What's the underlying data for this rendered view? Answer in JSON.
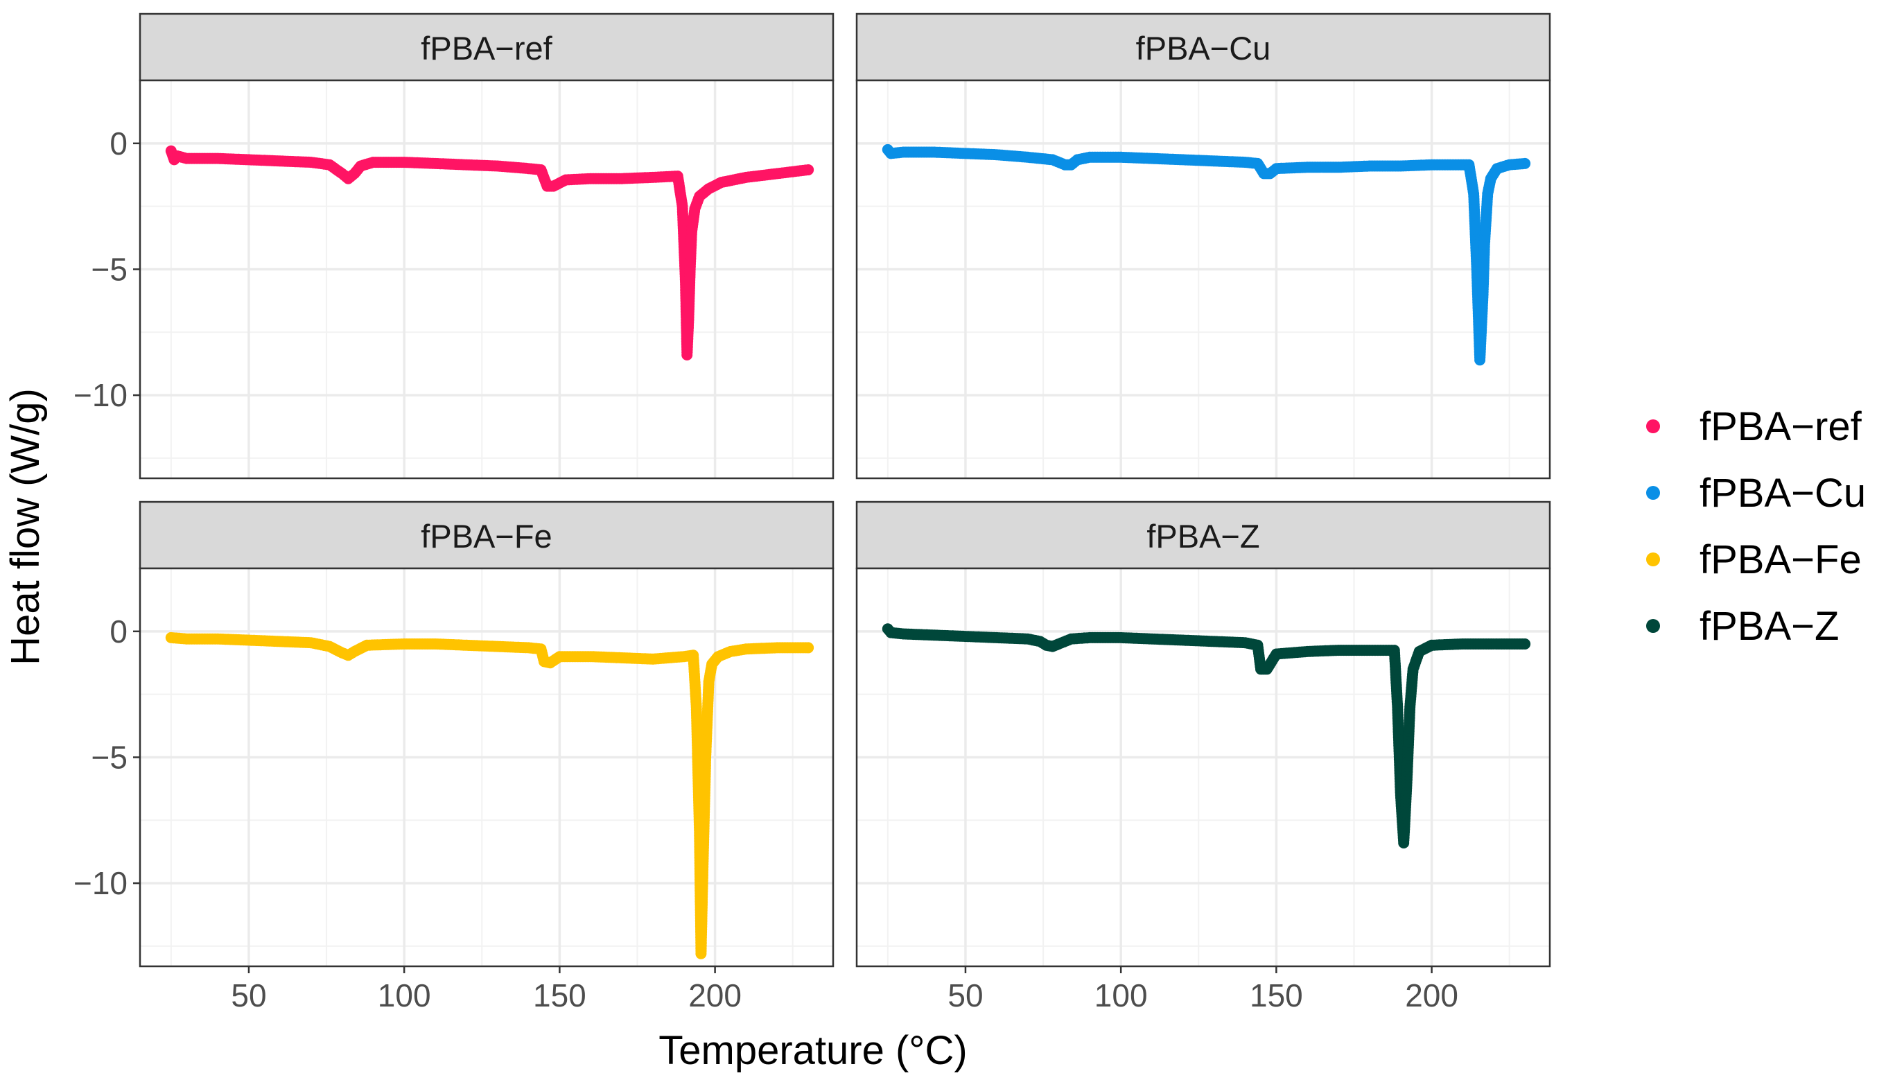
{
  "chart_data": {
    "type": "scatter",
    "layout": "facet-grid-2x2",
    "xlabel": "Temperature (°C)",
    "ylabel": "Heat flow (W/g)",
    "xlim": [
      15,
      238
    ],
    "ylim": [
      -13.3,
      2.5
    ],
    "xticks": [
      50,
      100,
      150,
      200
    ],
    "yticks": [
      0,
      -5,
      -10
    ],
    "xtick_labels": [
      "50",
      "100",
      "150",
      "200"
    ],
    "ytick_labels": [
      "0",
      "−5",
      "−10"
    ],
    "grid": true,
    "legend_position": "right",
    "series": [
      {
        "name": "fPBA−ref",
        "color": "#FF1464",
        "points": [
          [
            25,
            -0.3
          ],
          [
            26,
            -0.65
          ],
          [
            27,
            -0.5
          ],
          [
            30,
            -0.6
          ],
          [
            40,
            -0.6
          ],
          [
            50,
            -0.65
          ],
          [
            60,
            -0.7
          ],
          [
            70,
            -0.75
          ],
          [
            76,
            -0.85
          ],
          [
            80,
            -1.2
          ],
          [
            82,
            -1.4
          ],
          [
            84,
            -1.2
          ],
          [
            86,
            -0.9
          ],
          [
            90,
            -0.75
          ],
          [
            100,
            -0.75
          ],
          [
            110,
            -0.8
          ],
          [
            120,
            -0.85
          ],
          [
            130,
            -0.9
          ],
          [
            140,
            -1.0
          ],
          [
            144,
            -1.05
          ],
          [
            146,
            -1.7
          ],
          [
            148,
            -1.7
          ],
          [
            152,
            -1.45
          ],
          [
            160,
            -1.4
          ],
          [
            170,
            -1.4
          ],
          [
            180,
            -1.35
          ],
          [
            188,
            -1.3
          ],
          [
            189.5,
            -2.5
          ],
          [
            190.5,
            -5.5
          ],
          [
            191,
            -8.4
          ],
          [
            191.5,
            -7.0
          ],
          [
            192,
            -5.0
          ],
          [
            192.5,
            -3.5
          ],
          [
            193.5,
            -2.6
          ],
          [
            195,
            -2.1
          ],
          [
            198,
            -1.8
          ],
          [
            202,
            -1.55
          ],
          [
            210,
            -1.35
          ],
          [
            220,
            -1.2
          ],
          [
            230,
            -1.05
          ]
        ]
      },
      {
        "name": "fPBA−Cu",
        "color": "#0A8FE6",
        "points": [
          [
            25,
            -0.25
          ],
          [
            26,
            -0.4
          ],
          [
            30,
            -0.35
          ],
          [
            40,
            -0.35
          ],
          [
            50,
            -0.4
          ],
          [
            60,
            -0.45
          ],
          [
            70,
            -0.55
          ],
          [
            78,
            -0.65
          ],
          [
            82,
            -0.85
          ],
          [
            84,
            -0.85
          ],
          [
            86,
            -0.65
          ],
          [
            90,
            -0.55
          ],
          [
            100,
            -0.55
          ],
          [
            110,
            -0.6
          ],
          [
            120,
            -0.65
          ],
          [
            130,
            -0.7
          ],
          [
            140,
            -0.75
          ],
          [
            144,
            -0.8
          ],
          [
            146,
            -1.2
          ],
          [
            148,
            -1.2
          ],
          [
            150,
            -1.0
          ],
          [
            160,
            -0.95
          ],
          [
            170,
            -0.95
          ],
          [
            180,
            -0.9
          ],
          [
            190,
            -0.9
          ],
          [
            200,
            -0.85
          ],
          [
            212,
            -0.85
          ],
          [
            213.5,
            -2.0
          ],
          [
            214.5,
            -5.0
          ],
          [
            215.5,
            -8.6
          ],
          [
            216.5,
            -6.0
          ],
          [
            217,
            -4.0
          ],
          [
            218,
            -2.0
          ],
          [
            219,
            -1.4
          ],
          [
            221,
            -1.0
          ],
          [
            225,
            -0.85
          ],
          [
            230,
            -0.8
          ]
        ]
      },
      {
        "name": "fPBA−Fe",
        "color": "#FFC300",
        "points": [
          [
            25,
            -0.25
          ],
          [
            30,
            -0.3
          ],
          [
            40,
            -0.3
          ],
          [
            50,
            -0.35
          ],
          [
            60,
            -0.4
          ],
          [
            70,
            -0.45
          ],
          [
            76,
            -0.6
          ],
          [
            80,
            -0.85
          ],
          [
            82,
            -0.95
          ],
          [
            84,
            -0.8
          ],
          [
            88,
            -0.55
          ],
          [
            100,
            -0.5
          ],
          [
            110,
            -0.5
          ],
          [
            120,
            -0.55
          ],
          [
            130,
            -0.6
          ],
          [
            140,
            -0.65
          ],
          [
            144,
            -0.7
          ],
          [
            145,
            -1.2
          ],
          [
            147,
            -1.25
          ],
          [
            150,
            -1.0
          ],
          [
            160,
            -1.0
          ],
          [
            170,
            -1.05
          ],
          [
            180,
            -1.1
          ],
          [
            190,
            -1.0
          ],
          [
            193,
            -0.95
          ],
          [
            194,
            -3.0
          ],
          [
            195,
            -8.0
          ],
          [
            195.5,
            -12.8
          ],
          [
            196,
            -10.0
          ],
          [
            197,
            -5.0
          ],
          [
            198,
            -2.0
          ],
          [
            199,
            -1.3
          ],
          [
            201,
            -1.0
          ],
          [
            205,
            -0.8
          ],
          [
            210,
            -0.7
          ],
          [
            220,
            -0.65
          ],
          [
            230,
            -0.65
          ]
        ]
      },
      {
        "name": "fPBA−Z",
        "color": "#00473A",
        "points": [
          [
            25,
            0.1
          ],
          [
            26,
            -0.05
          ],
          [
            30,
            -0.1
          ],
          [
            40,
            -0.15
          ],
          [
            50,
            -0.2
          ],
          [
            60,
            -0.25
          ],
          [
            70,
            -0.3
          ],
          [
            74,
            -0.4
          ],
          [
            76,
            -0.55
          ],
          [
            78,
            -0.6
          ],
          [
            80,
            -0.5
          ],
          [
            84,
            -0.3
          ],
          [
            90,
            -0.25
          ],
          [
            100,
            -0.25
          ],
          [
            110,
            -0.3
          ],
          [
            120,
            -0.35
          ],
          [
            130,
            -0.4
          ],
          [
            140,
            -0.45
          ],
          [
            144,
            -0.55
          ],
          [
            145,
            -1.5
          ],
          [
            147,
            -1.5
          ],
          [
            150,
            -0.9
          ],
          [
            160,
            -0.8
          ],
          [
            170,
            -0.75
          ],
          [
            180,
            -0.75
          ],
          [
            188,
            -0.75
          ],
          [
            189,
            -3.0
          ],
          [
            190,
            -6.5
          ],
          [
            191,
            -8.4
          ],
          [
            192,
            -6.0
          ],
          [
            193,
            -3.0
          ],
          [
            194,
            -1.5
          ],
          [
            196,
            -0.8
          ],
          [
            200,
            -0.55
          ],
          [
            210,
            -0.5
          ],
          [
            220,
            -0.5
          ],
          [
            230,
            -0.5
          ]
        ]
      }
    ]
  }
}
